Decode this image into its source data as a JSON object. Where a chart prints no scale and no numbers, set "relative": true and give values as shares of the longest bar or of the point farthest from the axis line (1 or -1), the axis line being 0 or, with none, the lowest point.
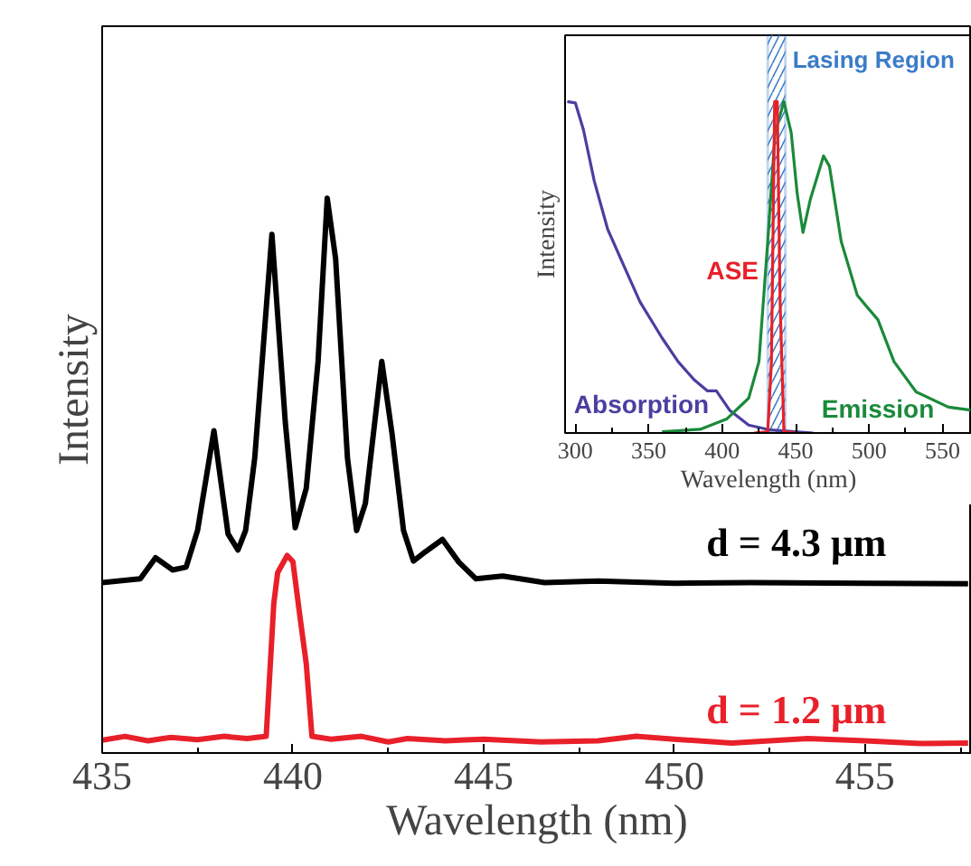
{
  "chart_data": [
    {
      "type": "line",
      "relative": true,
      "xlabel": "Wavelength (nm)",
      "ylabel": "Intensity",
      "xlim": [
        435,
        457.8
      ],
      "xticks": [
        435,
        440,
        445,
        450,
        455
      ],
      "tick_labels": "x",
      "series": [
        {
          "name": "d = 4.3 μm",
          "color": "#000000",
          "x": [
            435,
            436.0,
            436.4,
            436.85,
            437.2,
            437.5,
            437.93,
            438.3,
            438.56,
            438.76,
            439.0,
            439.45,
            439.8,
            440.06,
            440.35,
            440.66,
            440.9,
            441.12,
            441.43,
            441.67,
            441.9,
            442.33,
            442.6,
            442.9,
            443.16,
            443.48,
            443.92,
            444.35,
            444.8,
            445.5,
            446.6,
            448,
            450,
            452,
            455,
            457.7
          ],
          "values": [
            0.307,
            0.314,
            0.352,
            0.33,
            0.335,
            0.401,
            0.581,
            0.395,
            0.366,
            0.401,
            0.532,
            0.935,
            0.597,
            0.406,
            0.477,
            0.706,
            1.0,
            0.891,
            0.532,
            0.401,
            0.45,
            0.706,
            0.575,
            0.401,
            0.346,
            0.363,
            0.385,
            0.344,
            0.314,
            0.319,
            0.307,
            0.31,
            0.306,
            0.307,
            0.306,
            0.305
          ]
        },
        {
          "name": "d = 1.2 μm",
          "color": "#e8202a",
          "x": [
            435,
            435.6,
            436.2,
            436.8,
            437.5,
            438.2,
            438.8,
            439.3,
            439.5,
            439.6,
            439.85,
            440.0,
            440.2,
            440.35,
            440.5,
            441,
            441.8,
            442.5,
            443,
            444,
            445,
            446.5,
            448,
            449,
            450,
            451.5,
            452,
            453.5,
            455,
            456.5,
            457.7
          ],
          "values": [
            0.023,
            0.03,
            0.022,
            0.028,
            0.024,
            0.03,
            0.026,
            0.03,
            0.27,
            0.325,
            0.356,
            0.345,
            0.238,
            0.161,
            0.03,
            0.025,
            0.03,
            0.02,
            0.026,
            0.022,
            0.025,
            0.02,
            0.022,
            0.03,
            0.025,
            0.018,
            0.02,
            0.026,
            0.022,
            0.017,
            0.018
          ]
        }
      ]
    },
    {
      "type": "line",
      "relative": true,
      "xlabel": "Wavelength (nm)",
      "ylabel": "Intensity",
      "xlim": [
        293,
        570
      ],
      "xticks": [
        300,
        350,
        400,
        450,
        500,
        550
      ],
      "tick_labels": "x",
      "bands": [
        {
          "axis": "x",
          "from": 431,
          "to": 443,
          "label": "Lasing Region",
          "color": "#3a7cc8"
        }
      ],
      "series": [
        {
          "name": "Absorption",
          "color": "#4a3fa0",
          "x": [
            294.5,
            300,
            305.5,
            312.9,
            322,
            333,
            344,
            359,
            370,
            381,
            390,
            396,
            405,
            418,
            433,
            462
          ],
          "values": [
            1.0,
            0.996,
            0.915,
            0.76,
            0.615,
            0.505,
            0.396,
            0.287,
            0.215,
            0.16,
            0.127,
            0.127,
            0.069,
            0.024,
            0.009,
            0.0
          ]
        },
        {
          "name": "Emission",
          "color": "#1a8a3a",
          "x": [
            359,
            385,
            403,
            418,
            425,
            431,
            436,
            442,
            447,
            451,
            455,
            460,
            469,
            473,
            481,
            492,
            499,
            506,
            517,
            532,
            554,
            569
          ],
          "values": [
            0.004,
            0.011,
            0.042,
            0.105,
            0.215,
            0.578,
            0.905,
            1.0,
            0.905,
            0.724,
            0.605,
            0.705,
            0.836,
            0.805,
            0.578,
            0.415,
            0.378,
            0.342,
            0.215,
            0.124,
            0.078,
            0.069
          ]
        },
        {
          "name": "ASE",
          "color": "#e8202a",
          "x": [
            421.7,
            431,
            433.5,
            435.7,
            437.5,
            439.4,
            442,
            451
          ],
          "values": [
            0.0,
            0.004,
            0.215,
            1.0,
            1.0,
            0.396,
            0.004,
            0.0
          ]
        }
      ]
    }
  ]
}
